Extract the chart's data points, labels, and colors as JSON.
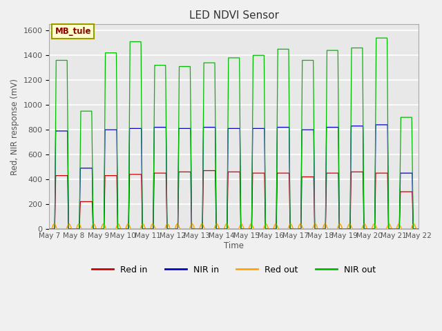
{
  "title": "LED NDVI Sensor",
  "ylabel": "Red, NIR response (mV)",
  "xlabel": "Time",
  "annotation": "MB_tule",
  "ylim": [
    0,
    1650
  ],
  "yticks": [
    0,
    200,
    400,
    600,
    800,
    1000,
    1200,
    1400,
    1600
  ],
  "x_labels": [
    "May 7",
    "May 8",
    "May 9",
    "May 10",
    "May 11",
    "May 12",
    "May 13",
    "May 14",
    "May 15",
    "May 16",
    "May 17",
    "May 18",
    "May 19",
    "May 20",
    "May 21",
    "May 22"
  ],
  "x_ticks": [
    0,
    1,
    2,
    3,
    4,
    5,
    6,
    7,
    8,
    9,
    10,
    11,
    12,
    13,
    14,
    15
  ],
  "colors": {
    "red_in": "#cc0000",
    "nir_in": "#0000cc",
    "red_out": "#ffa500",
    "nir_out": "#00bb00"
  },
  "legend_labels": [
    "Red in",
    "NIR in",
    "Red out",
    "NIR out"
  ],
  "bg_color": "#e8e8e8",
  "fig_color": "#f0f0f0",
  "grid_color": "#ffffff",
  "red_peaks": [
    430,
    220,
    430,
    440,
    450,
    460,
    470,
    460,
    450,
    450,
    420,
    450,
    460,
    450,
    300
  ],
  "nir_peaks": [
    790,
    490,
    800,
    810,
    820,
    810,
    820,
    810,
    810,
    820,
    800,
    820,
    830,
    840,
    450
  ],
  "nir_out_peaks": [
    1360,
    950,
    1420,
    1510,
    1320,
    1310,
    1340,
    1380,
    1400,
    1450,
    1360,
    1440,
    1460,
    1540,
    900
  ],
  "red_out_max": 40
}
